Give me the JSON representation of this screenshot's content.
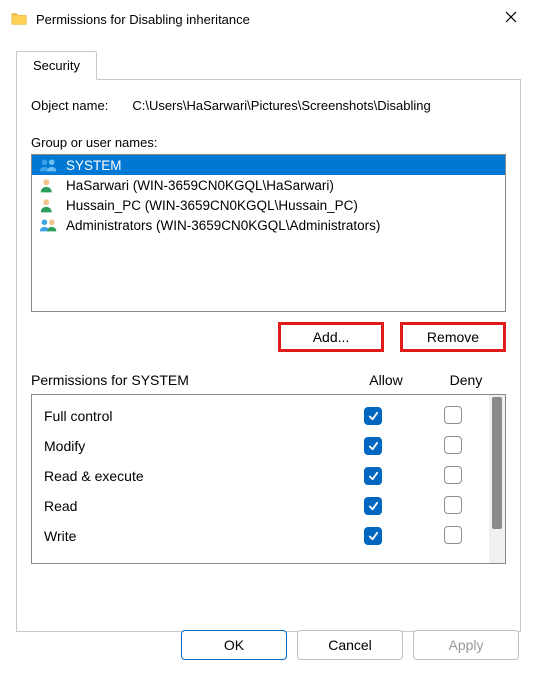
{
  "window": {
    "title": "Permissions for Disabling inheritance"
  },
  "tab": {
    "label": "Security"
  },
  "object": {
    "label": "Object name:",
    "value": "C:\\Users\\HaSarwari\\Pictures\\Screenshots\\Disabling"
  },
  "groups": {
    "label": "Group or user names:",
    "items": [
      {
        "name": "SYSTEM",
        "icon": "users-blue",
        "selected": true
      },
      {
        "name": "HaSarwari (WIN-3659CN0KGQL\\HaSarwari)",
        "icon": "user-green",
        "selected": false
      },
      {
        "name": "Hussain_PC (WIN-3659CN0KGQL\\Hussain_PC)",
        "icon": "user-green",
        "selected": false
      },
      {
        "name": "Administrators (WIN-3659CN0KGQL\\Administrators)",
        "icon": "users-mixed",
        "selected": false
      }
    ]
  },
  "buttons": {
    "add": "Add...",
    "remove": "Remove",
    "ok": "OK",
    "cancel": "Cancel",
    "apply": "Apply"
  },
  "permissions": {
    "header_for": "Permissions for SYSTEM",
    "col_allow": "Allow",
    "col_deny": "Deny",
    "rows": [
      {
        "name": "Full control",
        "allow": true,
        "deny": false
      },
      {
        "name": "Modify",
        "allow": true,
        "deny": false
      },
      {
        "name": "Read & execute",
        "allow": true,
        "deny": false
      },
      {
        "name": "Read",
        "allow": true,
        "deny": false
      },
      {
        "name": "Write",
        "allow": true,
        "deny": false
      }
    ]
  },
  "colors": {
    "selection": "#0078d4",
    "checkbox": "#0067c0",
    "highlight_border": "#e11b1b"
  }
}
